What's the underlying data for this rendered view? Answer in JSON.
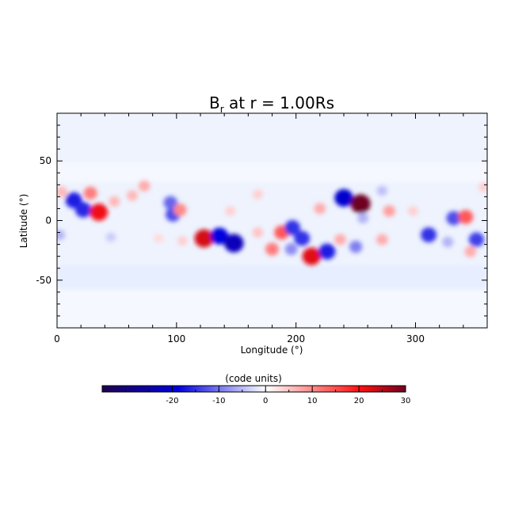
{
  "chart_data": {
    "type": "heatmap",
    "title_main": "B",
    "title_sub": "r",
    "title_rest": " at r = 1.00Rs",
    "xlabel": "Longitude (°)",
    "ylabel": "Latitude (°)",
    "xlim": [
      0,
      360
    ],
    "ylim": [
      -90,
      90
    ],
    "xticks": [
      0,
      100,
      200,
      300
    ],
    "yticks": [
      50,
      0,
      -50
    ],
    "colorbar": {
      "label": "(code units)",
      "range": [
        -35,
        30
      ],
      "ticks": [
        -20,
        -10,
        0,
        10,
        20,
        30
      ],
      "colors": [
        "#1f0050",
        "#0000e0",
        "#ffffff",
        "#ff1010",
        "#6e0020"
      ]
    },
    "features": [
      {
        "lon": 4,
        "lat": 24,
        "value": 6
      },
      {
        "lon": 14,
        "lat": 17,
        "value": -18
      },
      {
        "lon": 22,
        "lat": 9,
        "value": -17
      },
      {
        "lon": 28,
        "lat": 23,
        "value": 11
      },
      {
        "lon": 35,
        "lat": 7,
        "value": 21
      },
      {
        "lon": 48,
        "lat": 16,
        "value": 6
      },
      {
        "lon": 63,
        "lat": 21,
        "value": 6
      },
      {
        "lon": 73,
        "lat": 29,
        "value": 7
      },
      {
        "lon": 95,
        "lat": 15,
        "value": -12
      },
      {
        "lon": 97,
        "lat": 5,
        "value": -14
      },
      {
        "lon": 103,
        "lat": 9,
        "value": 10
      },
      {
        "lon": 85,
        "lat": -15,
        "value": 3
      },
      {
        "lon": 105,
        "lat": -17,
        "value": 4
      },
      {
        "lon": 123,
        "lat": -15,
        "value": 23
      },
      {
        "lon": 136,
        "lat": -13,
        "value": -20
      },
      {
        "lon": 148,
        "lat": -19,
        "value": -24
      },
      {
        "lon": 145,
        "lat": 8,
        "value": 4
      },
      {
        "lon": 168,
        "lat": -10,
        "value": 5
      },
      {
        "lon": 180,
        "lat": -24,
        "value": 11
      },
      {
        "lon": 188,
        "lat": -10,
        "value": 14
      },
      {
        "lon": 168,
        "lat": 22,
        "value": 4
      },
      {
        "lon": 197,
        "lat": -6,
        "value": -16
      },
      {
        "lon": 205,
        "lat": -15,
        "value": -16
      },
      {
        "lon": 196,
        "lat": -24,
        "value": -9
      },
      {
        "lon": 213,
        "lat": -30,
        "value": 22
      },
      {
        "lon": 226,
        "lat": -26,
        "value": -18
      },
      {
        "lon": 220,
        "lat": 10,
        "value": 7
      },
      {
        "lon": 240,
        "lat": 19,
        "value": -22
      },
      {
        "lon": 254,
        "lat": 14,
        "value": 30
      },
      {
        "lon": 256,
        "lat": 2,
        "value": -6
      },
      {
        "lon": 272,
        "lat": 25,
        "value": -5
      },
      {
        "lon": 278,
        "lat": 8,
        "value": 8
      },
      {
        "lon": 237,
        "lat": -16,
        "value": 7
      },
      {
        "lon": 250,
        "lat": -22,
        "value": -10
      },
      {
        "lon": 272,
        "lat": -16,
        "value": 7
      },
      {
        "lon": 298,
        "lat": 8,
        "value": 4
      },
      {
        "lon": 311,
        "lat": -12,
        "value": -16
      },
      {
        "lon": 327,
        "lat": -18,
        "value": -6
      },
      {
        "lon": 332,
        "lat": 2,
        "value": -14
      },
      {
        "lon": 342,
        "lat": 3,
        "value": 14
      },
      {
        "lon": 351,
        "lat": -16,
        "value": -15
      },
      {
        "lon": 346,
        "lat": -26,
        "value": 7
      },
      {
        "lon": 357,
        "lat": 28,
        "value": 4
      },
      {
        "lon": 2,
        "lat": -12,
        "value": -6
      },
      {
        "lon": 45,
        "lat": -14,
        "value": -4
      }
    ]
  }
}
